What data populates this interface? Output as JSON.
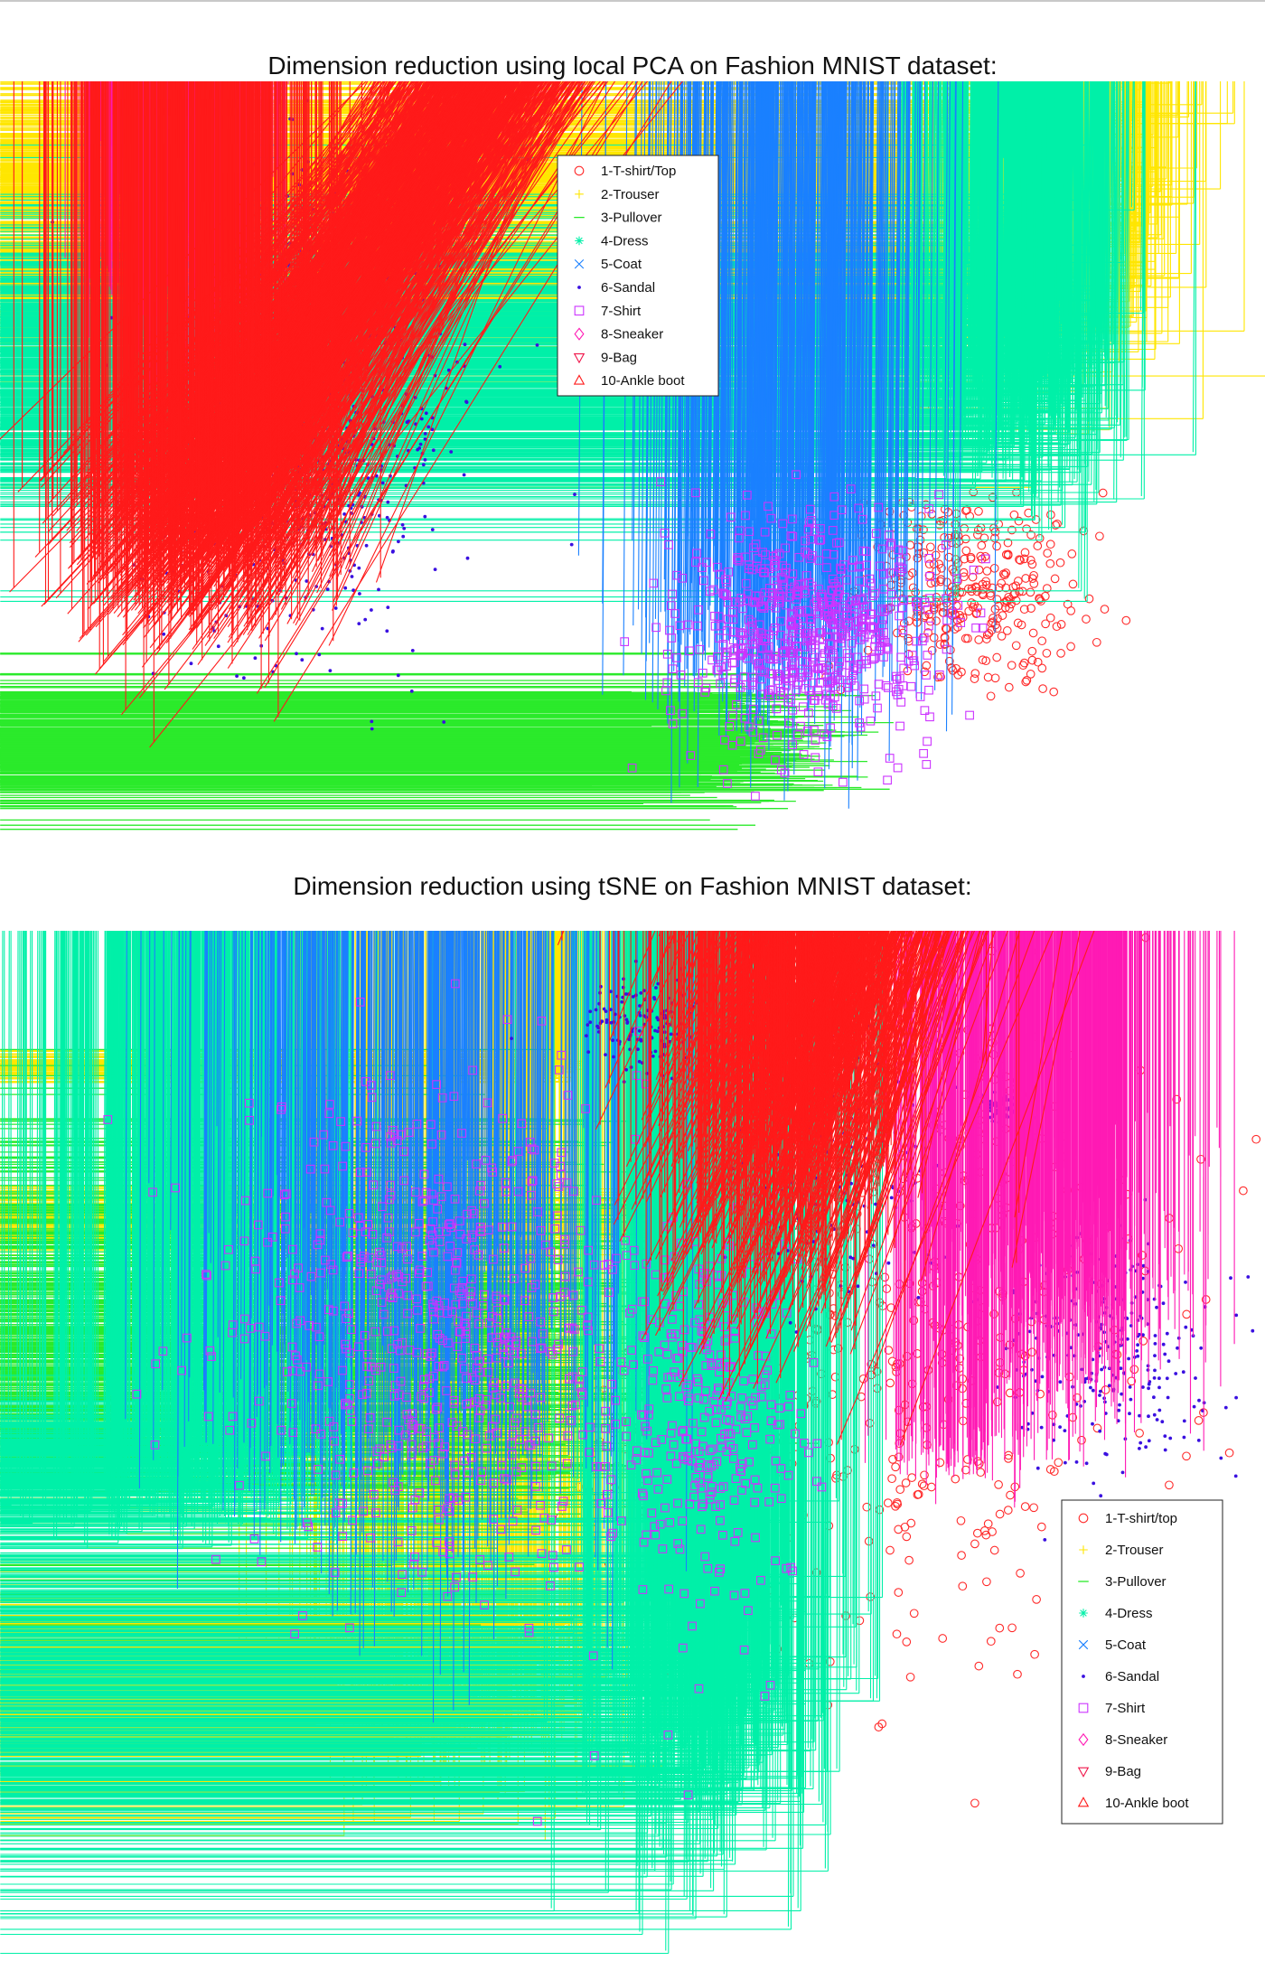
{
  "page": {
    "pca_title": "Dimension reduction using local PCA on Fashion MNIST dataset:",
    "tsne_title": "Dimension reduction using tSNE on Fashion MNIST dataset:"
  },
  "chart_data": [
    {
      "type": "scatter",
      "title": "Dimension reduction using local PCA on Fashion MNIST dataset:",
      "xlabel": "",
      "ylabel": "",
      "grid": false,
      "axes_visible": false,
      "legend_position": "top-center",
      "series": [
        {
          "name": "1-T-shirt/Top",
          "color": "#ff2a2a",
          "marker": "circle",
          "clusters": [
            {
              "x": 1075,
              "y": 650,
              "sx": 60,
              "sy": 55,
              "n": 340
            }
          ]
        },
        {
          "name": "2-Trouser",
          "color": "#ffe600",
          "marker": "plus",
          "clusters": [
            {
              "x": 1200,
              "y": 235,
              "sx": 55,
              "sy": 90,
              "n": 620
            }
          ]
        },
        {
          "name": "3-Pullover",
          "color": "#2bea2b",
          "marker": "dash",
          "clusters": [
            {
              "x": 820,
              "y": 820,
              "sx": 55,
              "sy": 35,
              "n": 420
            }
          ]
        },
        {
          "name": "4-Dress",
          "color": "#00f0a8",
          "marker": "asterisk",
          "clusters": [
            {
              "x": 1130,
              "y": 410,
              "sx": 55,
              "sy": 75,
              "n": 620
            }
          ]
        },
        {
          "name": "5-Coat",
          "color": "#1a80ff",
          "marker": "x",
          "clusters": [
            {
              "x": 870,
              "y": 700,
              "sx": 75,
              "sy": 70,
              "n": 520
            }
          ]
        },
        {
          "name": "6-Sandal",
          "color": "#3a10e0",
          "marker": "dot",
          "clusters": [
            {
              "x": 330,
              "y": 450,
              "sx": 80,
              "sy": 120,
              "n": 900
            }
          ]
        },
        {
          "name": "7-Shirt",
          "color": "#cc33ff",
          "marker": "square",
          "clusters": [
            {
              "x": 890,
              "y": 700,
              "sx": 70,
              "sy": 60,
              "n": 680
            }
          ]
        },
        {
          "name": "8-Sneaker",
          "color": "#ff1ab4",
          "marker": "diamond",
          "clusters": [
            {
              "x": 200,
              "y": 280,
              "sx": 50,
              "sy": 90,
              "n": 720
            }
          ]
        },
        {
          "name": "9-Bag",
          "color": "#f0154a",
          "marker": "triangle-down",
          "clusters": [
            {
              "x": 500,
              "y": 680,
              "sx": 65,
              "sy": 100,
              "n": 760
            }
          ]
        },
        {
          "name": "10-Ankle boot",
          "color": "#ff1a1a",
          "marker": "triangle-up",
          "clusters": [
            {
              "x": 210,
              "y": 600,
              "sx": 70,
              "sy": 60,
              "n": 760
            }
          ]
        }
      ]
    },
    {
      "type": "scatter",
      "title": "Dimension reduction using tSNE on Fashion MNIST dataset:",
      "xlabel": "",
      "ylabel": "",
      "grid": false,
      "axes_visible": false,
      "legend_position": "bottom-right",
      "series": [
        {
          "name": "1-T-shirt/top",
          "color": "#ff2a2a",
          "marker": "circle",
          "clusters": [
            {
              "x": 780,
              "y": 1550,
              "sx": 55,
              "sy": 65,
              "n": 300
            },
            {
              "x": 1025,
              "y": 1435,
              "sx": 125,
              "sy": 210,
              "n": 480
            }
          ]
        },
        {
          "name": "2-Trouser",
          "color": "#ffe600",
          "marker": "plus",
          "clusters": [
            {
              "x": 520,
              "y": 1880,
              "sx": 85,
              "sy": 55,
              "n": 480
            },
            {
              "x": 350,
              "y": 1350,
              "sx": 18,
              "sy": 20,
              "n": 90
            },
            {
              "x": 620,
              "y": 1180,
              "sx": 14,
              "sy": 12,
              "n": 80
            },
            {
              "x": 725,
              "y": 1350,
              "sx": 16,
              "sy": 13,
              "n": 80
            }
          ]
        },
        {
          "name": "3-Pullover",
          "color": "#2bea2b",
          "marker": "dash",
          "clusters": [
            {
              "x": 600,
              "y": 1500,
              "sx": 80,
              "sy": 120,
              "n": 420
            }
          ]
        },
        {
          "name": "4-Dress",
          "color": "#00f0a8",
          "marker": "asterisk",
          "clusters": [
            {
              "x": 230,
              "y": 1630,
              "sx": 90,
              "sy": 35,
              "n": 380
            },
            {
              "x": 790,
              "y": 1890,
              "sx": 65,
              "sy": 90,
              "n": 520
            }
          ]
        },
        {
          "name": "5-Coat",
          "color": "#1a80ff",
          "marker": "x",
          "clusters": [
            {
              "x": 450,
              "y": 1560,
              "sx": 120,
              "sy": 120,
              "n": 520
            }
          ]
        },
        {
          "name": "6-Sandal",
          "color": "#3a10e0",
          "marker": "dot",
          "clusters": [
            {
              "x": 710,
              "y": 1130,
              "sx": 30,
              "sy": 25,
              "n": 130
            },
            {
              "x": 930,
              "y": 1280,
              "sx": 60,
              "sy": 80,
              "n": 160
            },
            {
              "x": 1230,
              "y": 1500,
              "sx": 55,
              "sy": 65,
              "n": 260
            },
            {
              "x": 1110,
              "y": 1225,
              "sx": 15,
              "sy": 10,
              "n": 60
            }
          ]
        },
        {
          "name": "7-Shirt",
          "color": "#cc33ff",
          "marker": "square",
          "clusters": [
            {
              "x": 490,
              "y": 1480,
              "sx": 120,
              "sy": 140,
              "n": 700
            },
            {
              "x": 790,
              "y": 1570,
              "sx": 50,
              "sy": 110,
              "n": 300
            }
          ]
        },
        {
          "name": "8-Sneaker",
          "color": "#ff1ab4",
          "marker": "diamond",
          "clusters": [
            {
              "x": 1170,
              "y": 1430,
              "sx": 65,
              "sy": 85,
              "n": 680
            },
            {
              "x": 1060,
              "y": 1610,
              "sx": 40,
              "sy": 18,
              "n": 120
            }
          ]
        },
        {
          "name": "9-Bag",
          "color": "#f0154a",
          "marker": "triangle-down",
          "clusters": [
            {
              "x": 470,
              "y": 1155,
              "sx": 55,
              "sy": 80,
              "n": 480
            },
            {
              "x": 235,
              "y": 1390,
              "sx": 30,
              "sy": 45,
              "n": 240
            },
            {
              "x": 1055,
              "y": 1810,
              "sx": 40,
              "sy": 60,
              "n": 320
            }
          ]
        },
        {
          "name": "10-Ankle boot",
          "color": "#ff1a1a",
          "marker": "triangle-up",
          "clusters": [
            {
              "x": 860,
              "y": 1250,
              "sx": 70,
              "sy": 120,
              "n": 620
            }
          ]
        }
      ]
    }
  ]
}
